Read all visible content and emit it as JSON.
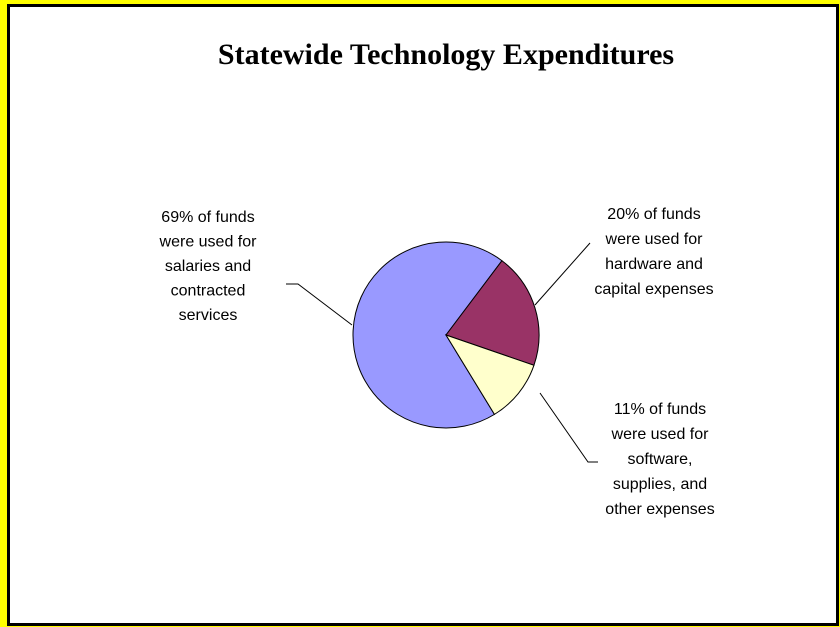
{
  "chart_data": {
    "type": "pie",
    "title": "Statewide Technology Expenditures",
    "values": [
      69,
      20,
      11
    ],
    "value_labels": [
      [
        "69% of funds",
        "were used for",
        "salaries and",
        "contracted",
        "services"
      ],
      [
        "20% of funds",
        "were used for",
        "hardware and",
        "capital expenses"
      ],
      [
        "11% of funds",
        "were used for",
        "software,",
        "supplies, and",
        "other expenses"
      ]
    ],
    "colors": [
      "#9999ff",
      "#993366",
      "#ffffcc"
    ]
  }
}
